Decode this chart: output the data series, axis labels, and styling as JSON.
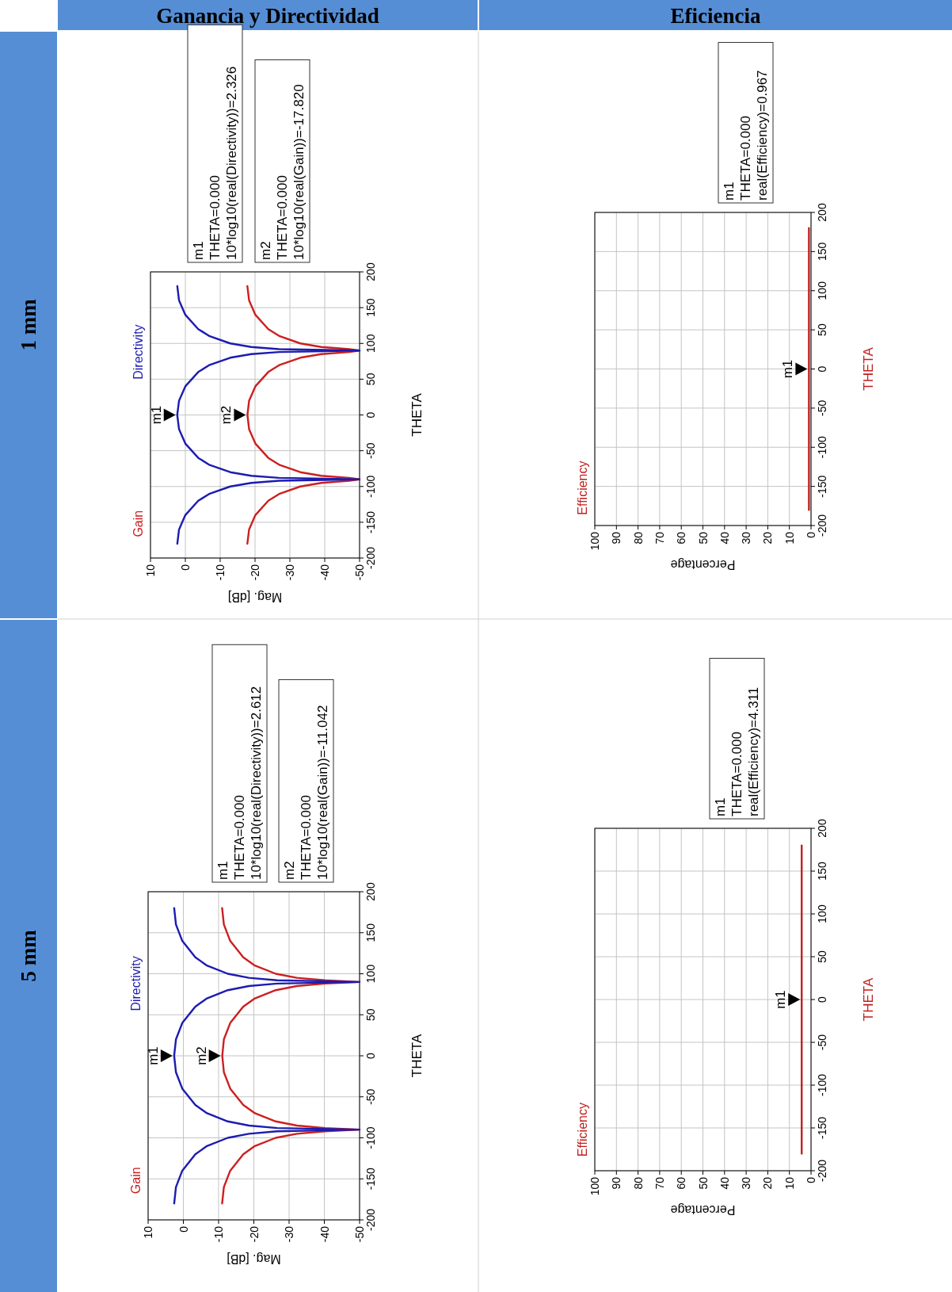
{
  "chart_data": [
    {
      "type": "line",
      "title": "Ganancia y Directividad",
      "subtitle": "1 mm",
      "xlabel": "Mag. [dB]",
      "ylabel": "THETA",
      "legend": "left",
      "grid": true,
      "xlim": [
        10,
        -50
      ],
      "xticks": [
        10,
        0,
        -10,
        -20,
        -30,
        -40,
        -50
      ],
      "ylim": [
        -200,
        200
      ],
      "yticks": [
        -200,
        -150,
        -100,
        -50,
        0,
        50,
        100,
        150,
        200
      ],
      "series": [
        {
          "name": "Gain",
          "color": "#cc2020",
          "x": [
            -17.8,
            -18.3,
            -20.1,
            -23.8,
            -27.1,
            -33.0,
            -39.0,
            -47.0,
            -50,
            -47.0,
            -39.0,
            -33.0,
            -27.1,
            -23.8,
            -20.1,
            -18.3,
            -17.82,
            -18.3,
            -20.1,
            -23.8,
            -27.1,
            -33.0,
            -39.0,
            -47.0,
            -50,
            -47.0,
            -39.0,
            -33.0,
            -27.1,
            -23.8,
            -20.1,
            -18.3,
            -17.8
          ],
          "values": [
            -180,
            -160,
            -140,
            -120,
            -110,
            -100,
            -95,
            -92,
            -90,
            -88,
            -85,
            -80,
            -70,
            -60,
            -40,
            -20,
            0,
            20,
            40,
            60,
            70,
            80,
            85,
            88,
            90,
            92,
            95,
            100,
            110,
            120,
            140,
            160,
            180
          ]
        },
        {
          "name": "Directivity",
          "color": "#1c1cb0",
          "x": [
            2.3,
            1.8,
            0.0,
            -3.7,
            -7.0,
            -12.9,
            -18.9,
            -26.9,
            -50,
            -26.9,
            -18.9,
            -12.9,
            -7.0,
            -3.7,
            0.0,
            1.8,
            2.326,
            1.8,
            0.0,
            -3.7,
            -7.0,
            -12.9,
            -18.9,
            -26.9,
            -50,
            -26.9,
            -18.9,
            -12.9,
            -7.0,
            -3.7,
            0.0,
            1.8,
            2.3
          ],
          "values": [
            -180,
            -160,
            -140,
            -120,
            -110,
            -100,
            -95,
            -92,
            -90,
            -88,
            -85,
            -80,
            -70,
            -60,
            -40,
            -20,
            0,
            20,
            40,
            60,
            70,
            80,
            85,
            88,
            90,
            92,
            95,
            100,
            110,
            120,
            140,
            160,
            180
          ]
        }
      ],
      "annotations": [
        "m1\nTHETA=0.000\n10*log10(real(Directivity))=2.326",
        "m2\nTHETA=0.000\n10*log10(real(Gain))=-17.820",
        {
          "text": "m1",
          "x": 2.326,
          "y": 0
        },
        {
          "text": "m2",
          "x": -17.82,
          "y": 0
        }
      ]
    },
    {
      "type": "line",
      "title": "Eficiencia",
      "xlabel": "Percentage",
      "ylabel": "THETA",
      "legend": "left",
      "grid": true,
      "xlim": [
        100,
        0
      ],
      "xticks": [
        100,
        90,
        80,
        70,
        60,
        50,
        40,
        30,
        20,
        10,
        0
      ],
      "ylim": [
        -200,
        200
      ],
      "yticks": [
        -200,
        -150,
        -100,
        -50,
        0,
        50,
        100,
        150,
        200
      ],
      "series": [
        {
          "name": "Efficiency",
          "color": "#c0201c",
          "x": [
            0.967,
            0.967
          ],
          "values": [
            -180,
            180
          ]
        }
      ],
      "annotations": [
        "m1\nTHETA=0.000\nreal(Efficiency)=0.967",
        {
          "text": "m1",
          "x": 0.967,
          "y": 0
        }
      ]
    },
    {
      "type": "line",
      "subtitle": "5 mm",
      "xlabel": "Mag. [dB]",
      "ylabel": "THETA",
      "legend": "left",
      "grid": true,
      "xlim": [
        10,
        -50
      ],
      "xticks": [
        10,
        0,
        -10,
        -20,
        -30,
        -40,
        -50
      ],
      "ylim": [
        -200,
        200
      ],
      "yticks": [
        -200,
        -150,
        -100,
        -50,
        0,
        50,
        100,
        150,
        200
      ],
      "series": [
        {
          "name": "Gain",
          "color": "#cc2020",
          "x": [
            -11.0,
            -11.5,
            -13.3,
            -17.0,
            -20.3,
            -26.2,
            -32.2,
            -40.2,
            -50,
            -40.2,
            -32.2,
            -26.2,
            -20.3,
            -17.0,
            -13.3,
            -11.5,
            -11.042,
            -11.5,
            -13.3,
            -17.0,
            -20.3,
            -26.2,
            -32.2,
            -40.2,
            -50,
            -40.2,
            -32.2,
            -26.2,
            -20.3,
            -17.0,
            -13.3,
            -11.5,
            -11.0
          ],
          "values": [
            -180,
            -160,
            -140,
            -120,
            -110,
            -100,
            -95,
            -92,
            -90,
            -88,
            -85,
            -80,
            -70,
            -60,
            -40,
            -20,
            0,
            20,
            40,
            60,
            70,
            80,
            85,
            88,
            90,
            92,
            95,
            100,
            110,
            120,
            140,
            160,
            180
          ]
        },
        {
          "name": "Directivity",
          "color": "#1c1cb0",
          "x": [
            2.6,
            2.1,
            0.3,
            -3.4,
            -6.7,
            -12.6,
            -18.6,
            -26.6,
            -50,
            -26.6,
            -18.6,
            -12.6,
            -6.7,
            -3.4,
            0.3,
            2.1,
            2.612,
            2.1,
            0.3,
            -3.4,
            -6.7,
            -12.6,
            -18.6,
            -26.6,
            -50,
            -26.6,
            -18.6,
            -12.6,
            -6.7,
            -3.4,
            0.3,
            2.1,
            2.6
          ],
          "values": [
            -180,
            -160,
            -140,
            -120,
            -110,
            -100,
            -95,
            -92,
            -90,
            -88,
            -85,
            -80,
            -70,
            -60,
            -40,
            -20,
            0,
            20,
            40,
            60,
            70,
            80,
            85,
            88,
            90,
            92,
            95,
            100,
            110,
            120,
            140,
            160,
            180
          ]
        }
      ],
      "annotations": [
        "m1\nTHETA=0.000\n10*log10(real(Directivity))=2.612",
        "m2\nTHETA=0.000\n10*log10(real(Gain))=-11.042",
        {
          "text": "m1",
          "x": 2.612,
          "y": 0
        },
        {
          "text": "m2",
          "x": -11.042,
          "y": 0
        }
      ]
    },
    {
      "type": "line",
      "xlabel": "Percentage",
      "ylabel": "THETA",
      "legend": "left",
      "grid": true,
      "xlim": [
        100,
        0
      ],
      "xticks": [
        100,
        90,
        80,
        70,
        60,
        50,
        40,
        30,
        20,
        10,
        0
      ],
      "ylim": [
        -200,
        200
      ],
      "yticks": [
        -200,
        -150,
        -100,
        -50,
        0,
        50,
        100,
        150,
        200
      ],
      "series": [
        {
          "name": "Efficiency",
          "color": "#c0201c",
          "x": [
            4.311,
            4.311
          ],
          "values": [
            -180,
            180
          ]
        }
      ],
      "annotations": [
        "m1\nTHETA=0.000\nreal(Efficiency)=4.311",
        {
          "text": "m1",
          "x": 4.311,
          "y": 0
        }
      ]
    }
  ]
}
